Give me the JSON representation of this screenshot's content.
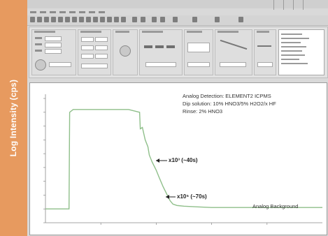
{
  "sidebar": {
    "axis_label": "Log Intensity (cps)"
  },
  "chart_data": {
    "type": "line",
    "title": "",
    "xlabel": "",
    "ylabel": "Log Intensity (cps)",
    "series": [
      {
        "x": [
          0,
          8,
          17,
          17.5,
          20,
          60,
          68,
          68.5,
          70,
          72,
          74,
          75,
          77,
          80,
          82,
          85,
          88,
          90,
          92,
          95,
          100,
          110,
          120,
          140,
          160,
          180,
          200
        ],
        "values": [
          1.0,
          1.0,
          1.0,
          8.0,
          8.2,
          8.2,
          8.0,
          6.8,
          6.9,
          6.0,
          5.5,
          4.9,
          4.4,
          3.8,
          3.3,
          2.6,
          2.0,
          1.6,
          1.35,
          1.25,
          1.2,
          1.15,
          1.1,
          1.1,
          1.1,
          1.1,
          1.1
        ]
      }
    ],
    "annotations": {
      "setup_line1": "Analog Detection: ELEMENT2 ICPMS",
      "setup_line2": "Dip solution: 10% HNO3/5% H2O2/x HF",
      "setup_line3": "Rinse: 2% HNO3",
      "marker1": "x10³ (~40s)",
      "marker2": "x10⁵ (~70s)",
      "background_label": "Analog Background"
    }
  }
}
